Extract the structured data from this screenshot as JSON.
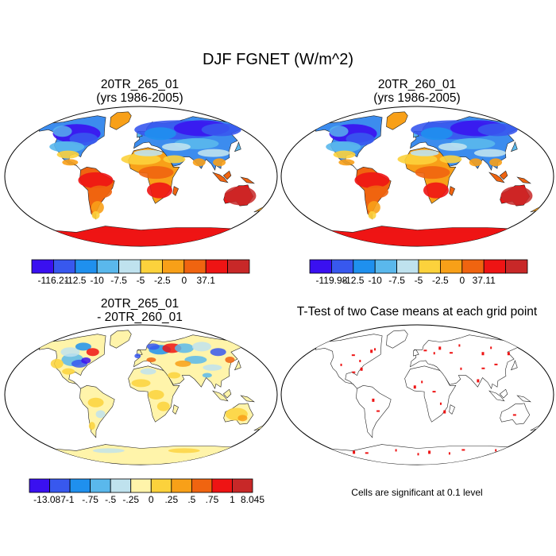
{
  "figure": {
    "title": "DJF FGNET (W/m^2)"
  },
  "panels": {
    "p1": {
      "title_line1": "20TR_265_01",
      "title_line2": "(yrs 1986-2005)",
      "colorbar": {
        "colors": [
          "#3a10f0",
          "#3858ee",
          "#1f90ee",
          "#5ab8ec",
          "#bfe2ee",
          "#fcd23c",
          "#f8a018",
          "#f06410",
          "#ee1414",
          "#c82828"
        ],
        "tick_labels": [
          "-116.21",
          "-12.5",
          "-10",
          "-7.5",
          "-5",
          "-2.5",
          "0",
          "37.1"
        ]
      }
    },
    "p2": {
      "title_line1": "20TR_260_01",
      "title_line2": "(yrs 1986-2005)",
      "colorbar": {
        "colors": [
          "#3a10f0",
          "#3858ee",
          "#1f90ee",
          "#5ab8ec",
          "#bfe2ee",
          "#fcd23c",
          "#f8a018",
          "#f06410",
          "#ee1414",
          "#c82828"
        ],
        "tick_labels": [
          "-119.98",
          "-12.5",
          "-10",
          "-7.5",
          "-5",
          "-2.5",
          "0",
          "37.11"
        ]
      }
    },
    "p3": {
      "title_line1": "20TR_265_01",
      "title_line2": "- 20TR_260_01",
      "colorbar": {
        "colors": [
          "#3a10f0",
          "#3858ee",
          "#1f90ee",
          "#5ab8ec",
          "#bfe2ee",
          "#fff4aa",
          "#fcd23c",
          "#f8a018",
          "#f06410",
          "#ee1414",
          "#c82828"
        ],
        "tick_labels": [
          "-13.087",
          "-1",
          "-.75",
          "-.5",
          "-.25",
          "0",
          ".25",
          ".5",
          ".75",
          "1",
          "8.045"
        ]
      }
    },
    "p4": {
      "title": "T-Test of two Case means at each grid point",
      "note": "Cells are significant at 0.1 level"
    }
  }
}
